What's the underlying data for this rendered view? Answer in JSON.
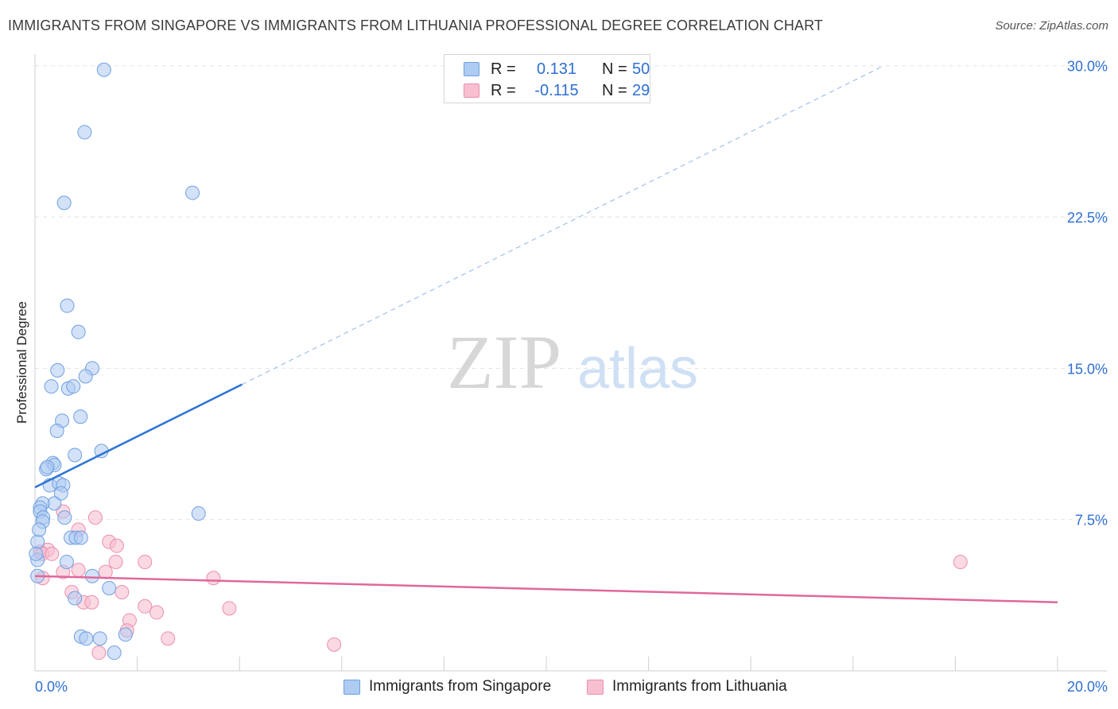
{
  "header": {
    "title": "IMMIGRANTS FROM SINGAPORE VS IMMIGRANTS FROM LITHUANIA PROFESSIONAL DEGREE CORRELATION CHART",
    "source": "Source: ZipAtlas.com"
  },
  "watermark": {
    "zip": "ZIP",
    "atlas": "atlas"
  },
  "legend": {
    "singapore": {
      "r_label": "R =",
      "r_value": "0.131",
      "n_label": "N =",
      "n_value": "50"
    },
    "lithuania": {
      "r_label": "R =",
      "r_value": "-0.115",
      "n_label": "N =",
      "n_value": "29"
    }
  },
  "colors": {
    "singapore_fill": "#aecbf2",
    "singapore_stroke": "#6fa0e0",
    "singapore_line": "#2e74d4",
    "lithuania_fill": "#f7bfd0",
    "lithuania_stroke": "#ec8fae",
    "lithuania_line": "#e0689a",
    "axis_text": "#2e6fd1",
    "grid": "#e2e2e2"
  },
  "chart_data": {
    "type": "scatter",
    "title": "IMMIGRANTS FROM SINGAPORE VS IMMIGRANTS FROM LITHUANIA PROFESSIONAL DEGREE CORRELATION CHART",
    "xlabel": "",
    "ylabel": "Professional Degree",
    "xlim": [
      0,
      20
    ],
    "ylim": [
      0,
      30.5
    ],
    "x_tick_labels": [
      "0.0%",
      "20.0%"
    ],
    "y_ticks": [
      7.5,
      15.0,
      22.5,
      30.0
    ],
    "y_tick_labels": [
      "7.5%",
      "15.0%",
      "22.5%",
      "30.0%"
    ],
    "grid": true,
    "legend_position": "top-center",
    "series": [
      {
        "name": "Immigrants from Singapore",
        "R": 0.131,
        "N": 50,
        "points": [
          [
            1.35,
            29.8
          ],
          [
            0.97,
            26.7
          ],
          [
            0.57,
            23.2
          ],
          [
            3.08,
            23.7
          ],
          [
            0.63,
            18.1
          ],
          [
            0.85,
            16.8
          ],
          [
            0.44,
            14.9
          ],
          [
            1.12,
            15.0
          ],
          [
            0.32,
            14.1
          ],
          [
            0.65,
            14.0
          ],
          [
            0.75,
            14.1
          ],
          [
            0.99,
            14.6
          ],
          [
            0.53,
            12.4
          ],
          [
            0.89,
            12.6
          ],
          [
            0.43,
            11.9
          ],
          [
            0.78,
            10.7
          ],
          [
            1.3,
            10.9
          ],
          [
            0.35,
            10.3
          ],
          [
            0.38,
            10.2
          ],
          [
            0.22,
            10.0
          ],
          [
            0.24,
            10.1
          ],
          [
            0.29,
            9.2
          ],
          [
            0.47,
            9.3
          ],
          [
            0.55,
            9.2
          ],
          [
            0.51,
            8.8
          ],
          [
            0.38,
            8.3
          ],
          [
            0.15,
            8.3
          ],
          [
            0.1,
            8.1
          ],
          [
            0.1,
            7.9
          ],
          [
            0.58,
            7.6
          ],
          [
            0.16,
            7.6
          ],
          [
            0.15,
            7.4
          ],
          [
            3.2,
            7.8
          ],
          [
            0.7,
            6.6
          ],
          [
            0.8,
            6.6
          ],
          [
            0.9,
            6.6
          ],
          [
            0.05,
            6.4
          ],
          [
            0.05,
            5.5
          ],
          [
            0.62,
            5.4
          ],
          [
            0.05,
            4.7
          ],
          [
            1.12,
            4.7
          ],
          [
            1.45,
            4.1
          ],
          [
            0.78,
            3.6
          ],
          [
            0.9,
            1.7
          ],
          [
            1.0,
            1.6
          ],
          [
            1.27,
            1.6
          ],
          [
            1.77,
            1.8
          ],
          [
            1.55,
            0.9
          ],
          [
            0.02,
            5.8
          ],
          [
            0.08,
            7.0
          ]
        ]
      },
      {
        "name": "Immigrants from Lithuania",
        "R": -0.115,
        "N": 29,
        "points": [
          [
            1.18,
            7.6
          ],
          [
            0.85,
            7.0
          ],
          [
            1.45,
            6.4
          ],
          [
            1.6,
            6.2
          ],
          [
            0.25,
            6.0
          ],
          [
            0.1,
            5.9
          ],
          [
            0.14,
            5.8
          ],
          [
            0.33,
            5.8
          ],
          [
            2.15,
            5.4
          ],
          [
            1.58,
            5.4
          ],
          [
            0.55,
            4.9
          ],
          [
            0.85,
            5.0
          ],
          [
            1.38,
            4.9
          ],
          [
            3.49,
            4.6
          ],
          [
            0.15,
            4.6
          ],
          [
            0.72,
            3.9
          ],
          [
            1.7,
            3.9
          ],
          [
            0.95,
            3.4
          ],
          [
            1.11,
            3.4
          ],
          [
            2.15,
            3.2
          ],
          [
            3.8,
            3.1
          ],
          [
            2.38,
            2.9
          ],
          [
            1.85,
            2.5
          ],
          [
            1.8,
            2.0
          ],
          [
            2.6,
            1.6
          ],
          [
            1.25,
            0.9
          ],
          [
            5.85,
            1.3
          ],
          [
            18.1,
            5.4
          ],
          [
            0.55,
            7.9
          ]
        ]
      }
    ],
    "trendlines": [
      {
        "series": "Immigrants from Singapore",
        "x": [
          0,
          4.05
        ],
        "y": [
          9.1,
          14.2
        ],
        "extension_x": [
          4.05,
          16.6
        ],
        "extension_y": [
          14.2,
          30.0
        ]
      },
      {
        "series": "Immigrants from Lithuania",
        "x": [
          0,
          20
        ],
        "y": [
          4.7,
          3.4
        ]
      }
    ]
  },
  "bottom_legend": {
    "singapore": "Immigrants from Singapore",
    "lithuania": "Immigrants from Lithuania"
  }
}
